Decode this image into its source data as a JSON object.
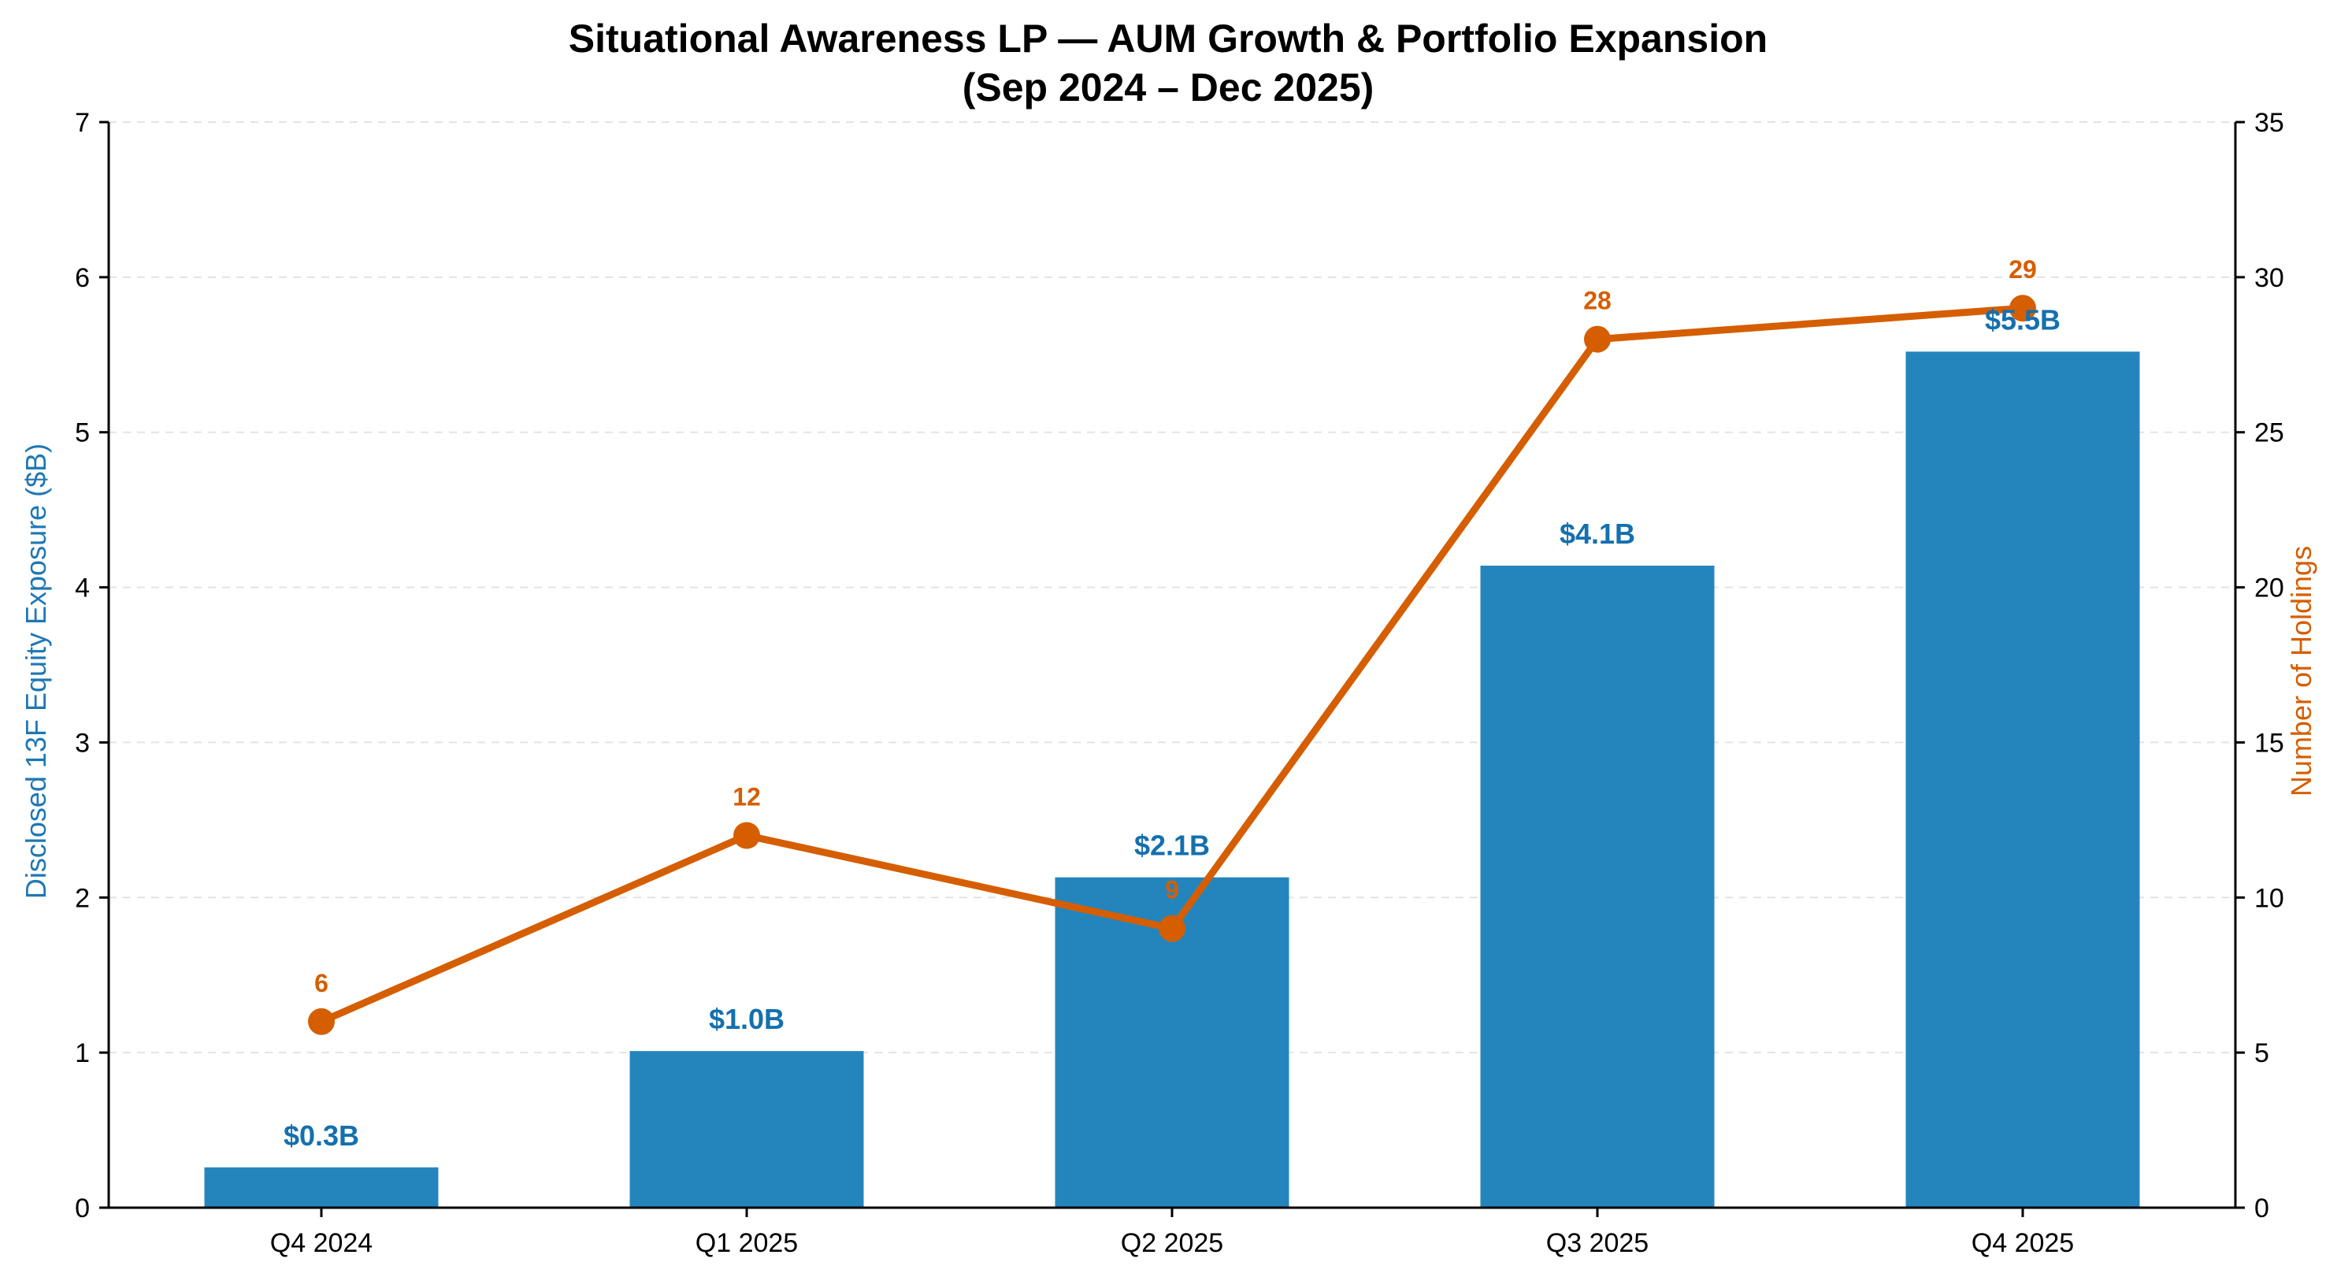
{
  "chart_data": {
    "type": "bar",
    "title_line1": "Situational Awareness LP — AUM Growth & Portfolio Expansion",
    "title_line2": "(Sep 2024 – Dec 2025)",
    "categories": [
      "Q4 2024",
      "Q1 2025",
      "Q2 2025",
      "Q3 2025",
      "Q4 2025"
    ],
    "series": [
      {
        "name": "Disclosed 13F Equity Exposure ($B)",
        "type": "bar",
        "axis": "left",
        "values": [
          0.26,
          1.01,
          2.13,
          4.14,
          5.52
        ],
        "labels": [
          "$0.3B",
          "$1.0B",
          "$2.1B",
          "$4.1B",
          "$5.5B"
        ],
        "color": "#2485BD"
      },
      {
        "name": "Number of Holdings",
        "type": "line",
        "axis": "right",
        "values": [
          6,
          12,
          9,
          28,
          29
        ],
        "labels": [
          "6",
          "12",
          "9",
          "28",
          "29"
        ],
        "color": "#D55E00"
      }
    ],
    "ylabel_left": "Disclosed 13F Equity Exposure ($B)",
    "ylabel_right": "Number of Holdings",
    "ylim_left": [
      0,
      7
    ],
    "ylim_right": [
      0,
      35
    ],
    "yticks_left": [
      "0",
      "1",
      "2",
      "3",
      "4",
      "5",
      "6",
      "7"
    ],
    "yticks_right": [
      "0",
      "5",
      "10",
      "15",
      "20",
      "25",
      "30",
      "35"
    ],
    "grid": "horizontal dashed",
    "left_label_color": "#1F77B4",
    "bar_label_color": "#1470AE",
    "right_label_color": "#D55E00"
  }
}
